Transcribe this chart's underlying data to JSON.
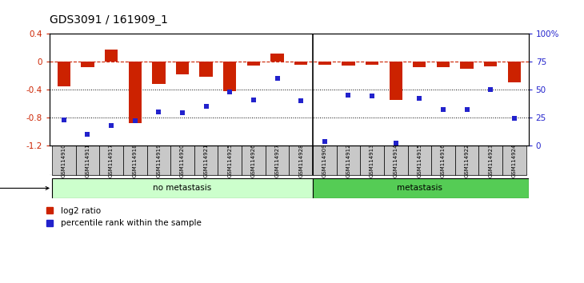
{
  "title": "GDS3091 / 161909_1",
  "samples": [
    "GSM114910",
    "GSM114911",
    "GSM114917",
    "GSM114918",
    "GSM114919",
    "GSM114920",
    "GSM114921",
    "GSM114925",
    "GSM114926",
    "GSM114927",
    "GSM114928",
    "GSM114909",
    "GSM114912",
    "GSM114913",
    "GSM114914",
    "GSM114915",
    "GSM114916",
    "GSM114922",
    "GSM114923",
    "GSM114924"
  ],
  "log2_ratio": [
    -0.35,
    -0.08,
    0.18,
    -0.88,
    -0.32,
    -0.18,
    -0.22,
    -0.42,
    -0.05,
    0.12,
    -0.04,
    -0.04,
    -0.05,
    -0.04,
    -0.55,
    -0.08,
    -0.08,
    -0.1,
    -0.07,
    -0.3
  ],
  "percentile_rank": [
    23,
    10,
    18,
    22,
    30,
    29,
    35,
    48,
    41,
    60,
    40,
    3,
    45,
    44,
    2,
    42,
    32,
    32,
    50,
    24
  ],
  "no_metastasis_count": 11,
  "metastasis_count": 9,
  "ylim_left": [
    -1.2,
    0.4
  ],
  "ylim_right": [
    0,
    100
  ],
  "bar_color": "#CC2200",
  "dot_color": "#2222CC",
  "no_meta_color": "#CCFFCC",
  "meta_color": "#55CC55",
  "label_bg_color": "#C8C8C8"
}
